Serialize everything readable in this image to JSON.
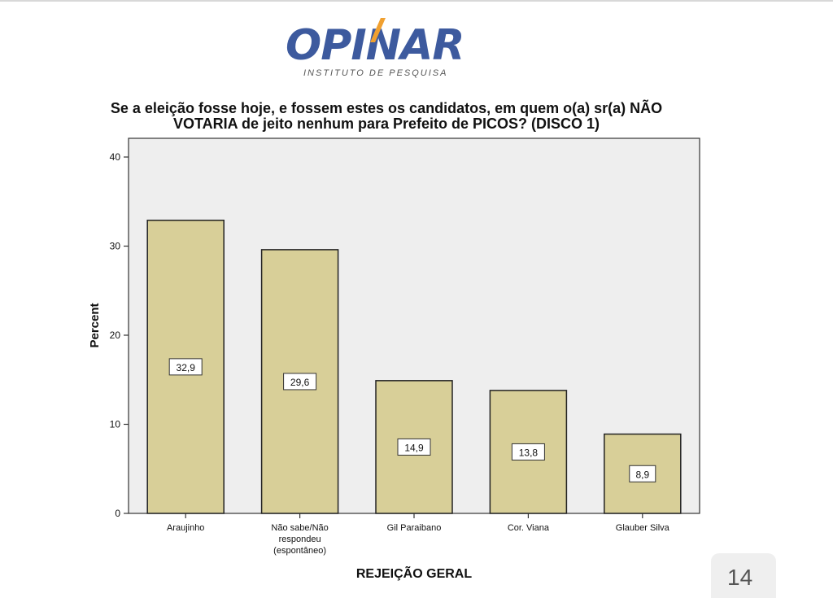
{
  "logo": {
    "word": "OPINAR",
    "tagline": "INSTITUTO DE PESQUISA"
  },
  "page_number": "14",
  "colors": {
    "bar_fill": "#d8cf98",
    "bar_stroke": "#222222",
    "plot_bg": "#eeeeee",
    "logo_blue": "#3d5a9e",
    "logo_orange": "#f0a030"
  },
  "chart_data": {
    "type": "bar",
    "title": "Se a eleição fosse hoje, e fossem estes os candidatos, em quem o(a) sr(a) NÃO VOTARIA de jeito nenhum para Prefeito de PICOS? (DISCO 1)",
    "title_lines": [
      "Se a eleição fosse hoje, e fossem estes os candidatos, em quem o(a) sr(a) NÃO",
      "VOTARIA de jeito nenhum para Prefeito de PICOS? (DISCO 1)"
    ],
    "xlabel": "REJEIÇÃO GERAL",
    "ylabel": "Percent",
    "ylim": [
      0,
      42
    ],
    "yticks": [
      0,
      10,
      20,
      30,
      40
    ],
    "categories": [
      [
        "Araujinho"
      ],
      [
        "Não sabe/Não",
        "respondeu",
        "(espontâneo)"
      ],
      [
        "Gil Paraibano"
      ],
      [
        "Cor. Viana"
      ],
      [
        "Glauber Silva"
      ]
    ],
    "values": [
      32.9,
      29.6,
      14.9,
      13.8,
      8.9
    ],
    "value_labels": [
      "32,9",
      "29,6",
      "14,9",
      "13,8",
      "8,9"
    ],
    "grid": false,
    "legend": "none"
  }
}
